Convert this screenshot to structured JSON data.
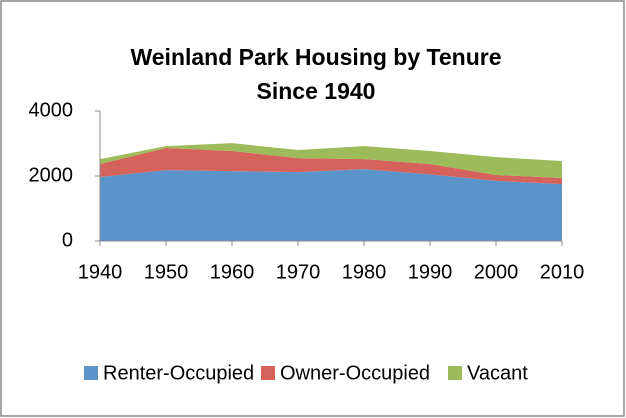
{
  "chart_data": {
    "type": "stacked_area",
    "title": "Weinland Park Housing by Tenure Since 1940",
    "categories": [
      "1940",
      "1950",
      "1960",
      "1970",
      "1980",
      "1990",
      "2000",
      "2010"
    ],
    "series": [
      {
        "name": "Renter-Occupied",
        "color": "#5b93cb",
        "values": [
          1970,
          2180,
          2150,
          2120,
          2210,
          2050,
          1850,
          1750
        ]
      },
      {
        "name": "Owner-Occupied",
        "color": "#d6625c",
        "values": [
          400,
          680,
          620,
          430,
          310,
          320,
          180,
          190
        ]
      },
      {
        "name": "Vacant",
        "color": "#9dbb5a",
        "values": [
          150,
          60,
          240,
          250,
          400,
          400,
          550,
          520
        ]
      }
    ],
    "ylim": [
      0,
      4000
    ],
    "yticks": [
      0,
      2000,
      4000
    ],
    "grid": false,
    "legend": "bottom"
  }
}
